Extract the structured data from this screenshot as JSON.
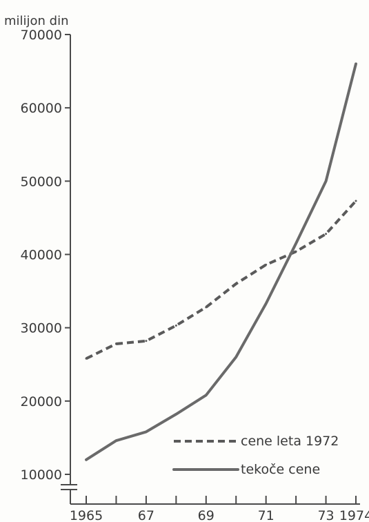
{
  "chart_data": {
    "type": "line",
    "ylabel": "milijon din",
    "ylim": [
      10000,
      70000
    ],
    "xlim": [
      1965,
      1974
    ],
    "grid": false,
    "legend_placement": "bottom-right",
    "y_ticks": [
      {
        "value": 10000,
        "label": "10000"
      },
      {
        "value": 20000,
        "label": "20000"
      },
      {
        "value": 30000,
        "label": "30000"
      },
      {
        "value": 40000,
        "label": "40000"
      },
      {
        "value": 50000,
        "label": "50000"
      },
      {
        "value": 60000,
        "label": "60000"
      },
      {
        "value": 70000,
        "label": "70000"
      }
    ],
    "x_ticks": [
      1965,
      1966,
      1967,
      1968,
      1969,
      1970,
      1971,
      1972,
      1973,
      1974
    ],
    "x_tick_labels": [
      {
        "value": 1965,
        "label": "1965"
      },
      {
        "value": 1967,
        "label": "67"
      },
      {
        "value": 1969,
        "label": "69"
      },
      {
        "value": 1971,
        "label": "71"
      },
      {
        "value": 1973,
        "label": "73"
      },
      {
        "value": 1974,
        "label": "1974"
      }
    ],
    "x": [
      1965,
      1966,
      1967,
      1968,
      1969,
      1970,
      1971,
      1972,
      1973,
      1974
    ],
    "series": [
      {
        "name": "cene leta 1972",
        "style": "dashed",
        "color": "#5a5a5a",
        "values": [
          25800,
          27800,
          28200,
          30300,
          32800,
          36000,
          38600,
          40400,
          42800,
          47300
        ]
      },
      {
        "name": "tekoče cene",
        "style": "solid",
        "color": "#6a6a6a",
        "values": [
          12000,
          14600,
          15800,
          18200,
          20800,
          26000,
          33300,
          41500,
          50000,
          66000
        ]
      }
    ]
  }
}
